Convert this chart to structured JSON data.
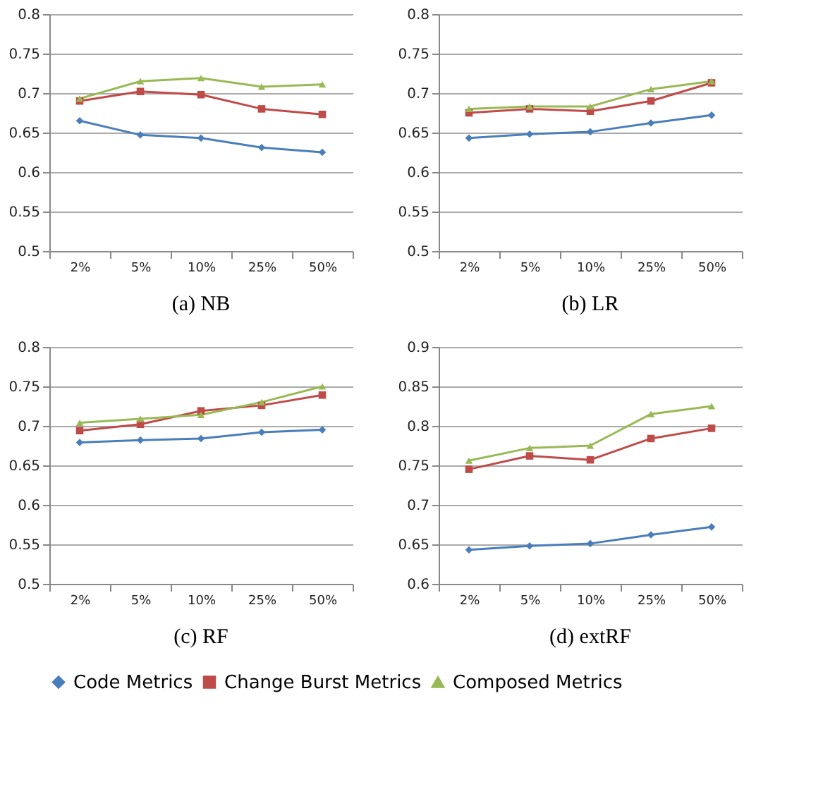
{
  "chart_data": [
    {
      "type": "line",
      "title": "(a)  NB",
      "categories": [
        "2%",
        "5%",
        "10%",
        "25%",
        "50%"
      ],
      "ylim": [
        0.5,
        0.8
      ],
      "yticks": [
        0.5,
        0.55,
        0.6,
        0.65,
        0.7,
        0.75,
        0.8
      ],
      "grid": "y",
      "legend": "bottom",
      "series": [
        {
          "name": "Code Metrics",
          "color": "#4a7ebb",
          "marker": "diamond",
          "values": [
            0.665,
            0.647,
            0.643,
            0.631,
            0.625
          ]
        },
        {
          "name": "Change Burst Metrics",
          "color": "#be4b48",
          "marker": "square",
          "values": [
            0.69,
            0.702,
            0.698,
            0.68,
            0.673
          ]
        },
        {
          "name": "Composed Metrics",
          "color": "#98b954",
          "marker": "triangle",
          "values": [
            0.693,
            0.715,
            0.719,
            0.708,
            0.711
          ]
        }
      ]
    },
    {
      "type": "line",
      "title": "(b)  LR",
      "categories": [
        "2%",
        "5%",
        "10%",
        "25%",
        "50%"
      ],
      "ylim": [
        0.5,
        0.8
      ],
      "yticks": [
        0.5,
        0.55,
        0.6,
        0.65,
        0.7,
        0.75,
        0.8
      ],
      "grid": "y",
      "legend": "bottom",
      "series": [
        {
          "name": "Code Metrics",
          "color": "#4a7ebb",
          "marker": "diamond",
          "values": [
            0.643,
            0.648,
            0.651,
            0.662,
            0.672
          ]
        },
        {
          "name": "Change Burst Metrics",
          "color": "#be4b48",
          "marker": "square",
          "values": [
            0.675,
            0.68,
            0.677,
            0.69,
            0.713
          ]
        },
        {
          "name": "Composed Metrics",
          "color": "#98b954",
          "marker": "triangle",
          "values": [
            0.68,
            0.683,
            0.683,
            0.705,
            0.715
          ]
        }
      ]
    },
    {
      "type": "line",
      "title": "(c)  RF",
      "categories": [
        "2%",
        "5%",
        "10%",
        "25%",
        "50%"
      ],
      "ylim": [
        0.5,
        0.8
      ],
      "yticks": [
        0.5,
        0.55,
        0.6,
        0.65,
        0.7,
        0.75,
        0.8
      ],
      "grid": "y",
      "legend": "bottom",
      "series": [
        {
          "name": "Code Metrics",
          "color": "#4a7ebb",
          "marker": "diamond",
          "values": [
            0.679,
            0.682,
            0.684,
            0.692,
            0.695
          ]
        },
        {
          "name": "Change Burst Metrics",
          "color": "#be4b48",
          "marker": "square",
          "values": [
            0.694,
            0.702,
            0.719,
            0.726,
            0.739
          ]
        },
        {
          "name": "Composed Metrics",
          "color": "#98b954",
          "marker": "triangle",
          "values": [
            0.704,
            0.709,
            0.714,
            0.73,
            0.75
          ]
        }
      ]
    },
    {
      "type": "line",
      "title": "(d)  extRF",
      "categories": [
        "2%",
        "5%",
        "10%",
        "25%",
        "50%"
      ],
      "ylim": [
        0.6,
        0.9
      ],
      "yticks": [
        0.6,
        0.65,
        0.7,
        0.75,
        0.8,
        0.85,
        0.9
      ],
      "grid": "y",
      "legend": "bottom",
      "series": [
        {
          "name": "Code Metrics",
          "color": "#4a7ebb",
          "marker": "diamond",
          "values": [
            0.643,
            0.648,
            0.651,
            0.662,
            0.672
          ]
        },
        {
          "name": "Change Burst Metrics",
          "color": "#be4b48",
          "marker": "square",
          "values": [
            0.745,
            0.762,
            0.757,
            0.784,
            0.797
          ]
        },
        {
          "name": "Composed Metrics",
          "color": "#98b954",
          "marker": "triangle",
          "values": [
            0.756,
            0.772,
            0.775,
            0.815,
            0.825
          ]
        }
      ]
    }
  ]
}
